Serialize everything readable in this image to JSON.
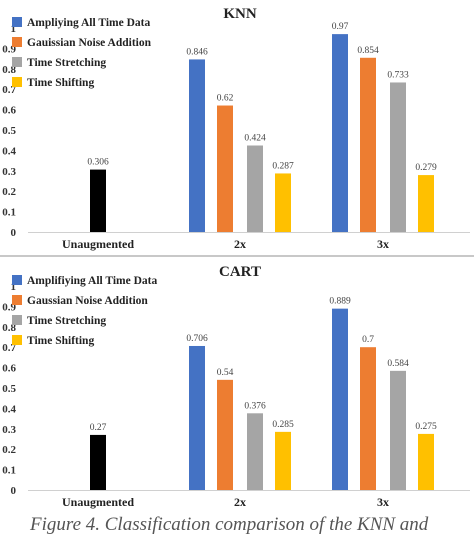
{
  "chart_data": [
    {
      "type": "bar",
      "title": "KNN",
      "categories": [
        "Unaugmented",
        "2x",
        "3x"
      ],
      "ylim": [
        0,
        1
      ],
      "yticks": [
        "0",
        "0.1",
        "0.2",
        "0.3",
        "0.4",
        "0.5",
        "0.6",
        "0.7",
        "0.8",
        "0.9",
        "1"
      ],
      "grid": false,
      "legend_position": "top-left",
      "series": [
        {
          "name": "Unaugmented",
          "show_in_legend": false,
          "color": "#000000",
          "values": [
            0.306,
            null,
            null
          ],
          "labels": [
            "0.306",
            null,
            null
          ]
        },
        {
          "name": "Ampliying All Time Data",
          "color": "#4472c4",
          "values": [
            null,
            0.846,
            0.97
          ],
          "labels": [
            null,
            "0.846",
            "0.97"
          ]
        },
        {
          "name": "Gauissian Noise Addition",
          "color": "#ed7d31",
          "values": [
            null,
            0.62,
            0.854
          ],
          "labels": [
            null,
            "0.62",
            "0.854"
          ]
        },
        {
          "name": "Time Stretching",
          "color": "#a5a5a5",
          "values": [
            null,
            0.424,
            0.733
          ],
          "labels": [
            null,
            "0.424",
            "0.733"
          ]
        },
        {
          "name": "Time Shifting",
          "color": "#ffc000",
          "values": [
            null,
            0.287,
            0.279
          ],
          "labels": [
            null,
            "0.287",
            "0.279"
          ]
        }
      ]
    },
    {
      "type": "bar",
      "title": "CART",
      "categories": [
        "Unaugmented",
        "2x",
        "3x"
      ],
      "ylim": [
        0,
        1
      ],
      "yticks": [
        "0",
        "0.1",
        "0.2",
        "0.3",
        "0.4",
        "0.5",
        "0.6",
        "0.7",
        "0.8",
        "0.9",
        "1"
      ],
      "grid": false,
      "legend_position": "top-left",
      "series": [
        {
          "name": "Unaugmented",
          "show_in_legend": false,
          "color": "#000000",
          "values": [
            0.27,
            null,
            null
          ],
          "labels": [
            "0.27",
            null,
            null
          ]
        },
        {
          "name": "Amplifiying All Time Data",
          "color": "#4472c4",
          "values": [
            null,
            0.706,
            0.889
          ],
          "labels": [
            null,
            "0.706",
            "0.889"
          ]
        },
        {
          "name": "Gaussian Noise Addition",
          "color": "#ed7d31",
          "values": [
            null,
            0.54,
            0.7
          ],
          "labels": [
            null,
            "0.54",
            "0.7"
          ]
        },
        {
          "name": "Time Stretching",
          "color": "#a5a5a5",
          "values": [
            null,
            0.376,
            0.584
          ],
          "labels": [
            null,
            "0.376",
            "0.584"
          ]
        },
        {
          "name": "Time Shifting",
          "color": "#ffc000",
          "values": [
            null,
            0.285,
            0.275
          ],
          "labels": [
            null,
            "0.285",
            "0.275"
          ]
        }
      ]
    }
  ],
  "caption": "Figure 4. Classification comparison of the KNN and"
}
